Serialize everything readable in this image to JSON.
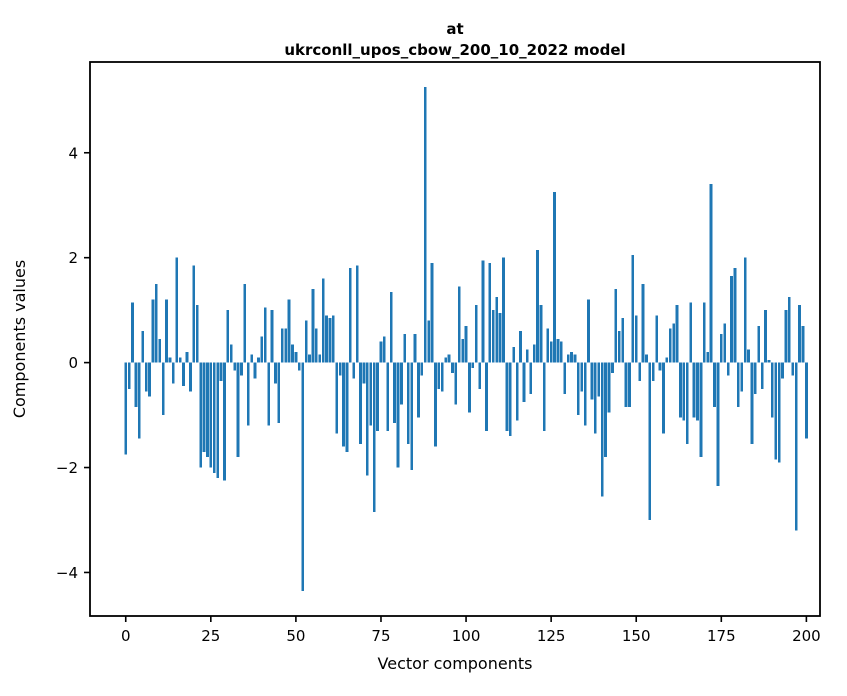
{
  "chart_data": {
    "type": "bar",
    "title_line1": "at",
    "title_line2": "ukrconll_upos_cbow_200_10_2022 model",
    "xlabel": "Vector components",
    "ylabel": "Components values",
    "bar_color": "#1f77b4",
    "grid": false,
    "legend_position": "none",
    "x_start": 0,
    "x_ticks": [
      0,
      25,
      50,
      75,
      100,
      125,
      150,
      175,
      200
    ],
    "y_ticks": [
      -4,
      -2,
      0,
      2,
      4
    ],
    "xlim": [
      -10.5,
      204
    ],
    "ylim": [
      -4.83,
      5.73
    ],
    "values": [
      -1.75,
      -0.5,
      1.15,
      -0.85,
      -1.45,
      0.6,
      -0.55,
      -0.65,
      1.2,
      1.5,
      0.45,
      -1.0,
      1.2,
      0.1,
      -0.4,
      2.0,
      0.1,
      -0.45,
      0.2,
      -0.55,
      1.85,
      1.1,
      -2.0,
      -1.7,
      -1.8,
      -2.0,
      -2.1,
      -2.2,
      -0.35,
      -2.25,
      1.0,
      0.35,
      -0.15,
      -1.8,
      -0.25,
      1.5,
      -1.2,
      0.15,
      -0.3,
      0.1,
      0.5,
      1.05,
      -1.2,
      1.0,
      -0.4,
      -1.15,
      0.65,
      0.65,
      1.2,
      0.35,
      0.2,
      -0.15,
      -4.35,
      0.8,
      0.15,
      1.4,
      0.65,
      0.15,
      1.6,
      0.9,
      0.85,
      0.9,
      -1.35,
      -0.25,
      -1.6,
      -1.7,
      1.8,
      -0.3,
      1.85,
      -1.55,
      -0.4,
      -2.15,
      -1.2,
      -2.85,
      -1.3,
      0.4,
      0.5,
      -1.3,
      1.35,
      -1.15,
      -2.0,
      -0.8,
      0.55,
      -1.55,
      -2.05,
      0.55,
      -1.05,
      -0.25,
      5.25,
      0.8,
      1.9,
      -1.6,
      -0.5,
      -0.55,
      0.1,
      0.15,
      -0.2,
      -0.8,
      1.45,
      0.45,
      0.7,
      -0.95,
      -0.1,
      1.1,
      -0.5,
      1.95,
      -1.3,
      1.9,
      1.0,
      1.25,
      0.95,
      2.0,
      -1.3,
      -1.4,
      0.3,
      -1.1,
      0.6,
      -0.75,
      0.25,
      -0.6,
      0.35,
      2.15,
      1.1,
      -1.3,
      0.65,
      0.4,
      3.25,
      0.45,
      0.4,
      -0.6,
      0.15,
      0.2,
      0.15,
      -1.0,
      -0.55,
      -1.2,
      1.2,
      -0.7,
      -1.35,
      -0.65,
      -2.55,
      -1.8,
      -0.95,
      -0.2,
      1.4,
      0.6,
      0.85,
      -0.85,
      -0.85,
      2.05,
      0.9,
      -0.35,
      1.5,
      0.15,
      -3.0,
      -0.35,
      0.9,
      -0.15,
      -1.35,
      0.1,
      0.65,
      0.75,
      1.1,
      -1.05,
      -1.1,
      -1.55,
      1.15,
      -1.05,
      -1.1,
      -1.8,
      1.15,
      0.2,
      3.4,
      -0.85,
      -2.35,
      0.55,
      0.75,
      -0.25,
      1.65,
      1.8,
      -0.85,
      -0.55,
      2.0,
      0.25,
      -1.55,
      -0.6,
      0.7,
      -0.5,
      1.0,
      0.05,
      -1.05,
      -1.85,
      -1.9,
      -0.3,
      1.0,
      1.25,
      -0.25,
      -3.2,
      1.1,
      0.7,
      -1.45
    ]
  }
}
